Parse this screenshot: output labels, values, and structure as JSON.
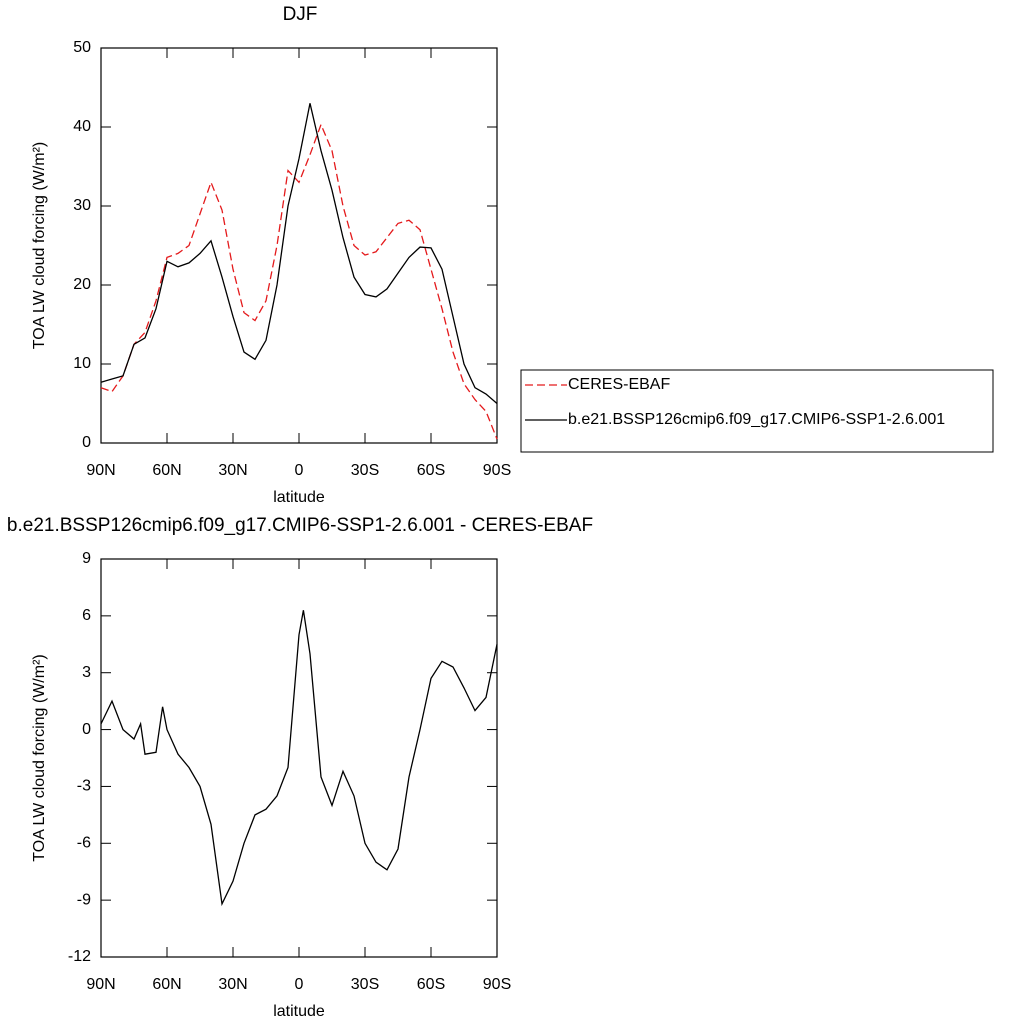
{
  "chart_data": [
    {
      "type": "line",
      "title": "DJF",
      "xlabel": "latitude",
      "ylabel": "TOA LW cloud forcing (W/m²)",
      "x": [
        90,
        85,
        80,
        75,
        70,
        65,
        60,
        55,
        50,
        45,
        40,
        35,
        30,
        25,
        20,
        15,
        10,
        5,
        0,
        -5,
        -10,
        -15,
        -20,
        -25,
        -30,
        -35,
        -40,
        -45,
        -50,
        -55,
        -60,
        -65,
        -70,
        -75,
        -80,
        -85,
        -90
      ],
      "series": [
        {
          "name": "CERES-EBAF",
          "color": "#e41a1c",
          "dash": true,
          "values": [
            7,
            6.5,
            8.5,
            12.5,
            14,
            18,
            23.5,
            24,
            25,
            29,
            33,
            29.5,
            22,
            16.5,
            15.5,
            18,
            25,
            34.5,
            33,
            36.5,
            40.3,
            37,
            30,
            25,
            23.8,
            24.2,
            26,
            27.8,
            28.2,
            27,
            22,
            17,
            11.5,
            7.5,
            5.5,
            4,
            0.5
          ]
        },
        {
          "name": "b.e21.BSSP126cmip6.f09_g17.CMIP6-SSP1-2.6.001",
          "color": "#000000",
          "dash": false,
          "values": [
            7.7,
            8.1,
            8.5,
            12.5,
            13.3,
            17,
            23,
            22.3,
            22.8,
            24,
            25.6,
            21,
            16,
            11.5,
            10.6,
            13,
            20,
            30,
            36,
            43,
            37,
            32,
            26,
            21,
            18.8,
            18.5,
            19.5,
            21.5,
            23.5,
            24.8,
            24.7,
            22,
            16,
            10,
            7,
            6.2,
            5
          ]
        }
      ],
      "xlim": [
        90,
        -90
      ],
      "xticks": [
        {
          "value": 90,
          "label": "90N"
        },
        {
          "value": 60,
          "label": "60N"
        },
        {
          "value": 30,
          "label": "30N"
        },
        0,
        {
          "value": -30,
          "label": "30S"
        },
        {
          "value": -60,
          "label": "60S"
        },
        {
          "value": -90,
          "label": "90S"
        }
      ],
      "ylim": [
        0,
        50
      ],
      "yticks": [
        0,
        10,
        20,
        30,
        40,
        50
      ]
    },
    {
      "type": "line",
      "title": "b.e21.BSSP126cmip6.f09_g17.CMIP6-SSP1-2.6.001 - CERES-EBAF",
      "xlabel": "latitude",
      "ylabel": "TOA LW cloud forcing (W/m²)",
      "x": [
        90,
        85,
        80,
        75,
        72,
        70,
        65,
        62,
        60,
        55,
        50,
        45,
        40,
        35,
        30,
        25,
        20,
        15,
        10,
        5,
        0,
        -2,
        -5,
        -10,
        -15,
        -20,
        -25,
        -30,
        -35,
        -40,
        -45,
        -50,
        -55,
        -60,
        -65,
        -70,
        -75,
        -80,
        -85,
        -90
      ],
      "values": [
        0.3,
        1.5,
        0,
        -0.5,
        0.3,
        -1.3,
        -1.2,
        1.2,
        0,
        -1.3,
        -2,
        -3,
        -5,
        -9.2,
        -8,
        -6,
        -4.5,
        -4.2,
        -3.5,
        -2,
        5,
        6.3,
        4,
        -2.5,
        -4,
        -2.2,
        -3.5,
        -6,
        -7,
        -7.4,
        -6.3,
        -2.5,
        0,
        2.7,
        3.6,
        3.3,
        2.2,
        1,
        1.7,
        4.5
      ],
      "color": "#000000",
      "xlim": [
        90,
        -90
      ],
      "xticks": [
        {
          "value": 90,
          "label": "90N"
        },
        {
          "value": 60,
          "label": "60N"
        },
        {
          "value": 30,
          "label": "30N"
        },
        0,
        {
          "value": -30,
          "label": "30S"
        },
        {
          "value": -60,
          "label": "60S"
        },
        {
          "value": -90,
          "label": "90S"
        }
      ],
      "ylim": [
        -12,
        9
      ],
      "yticks": [
        -12,
        -9,
        -6,
        -3,
        0,
        3,
        6,
        9
      ]
    }
  ]
}
